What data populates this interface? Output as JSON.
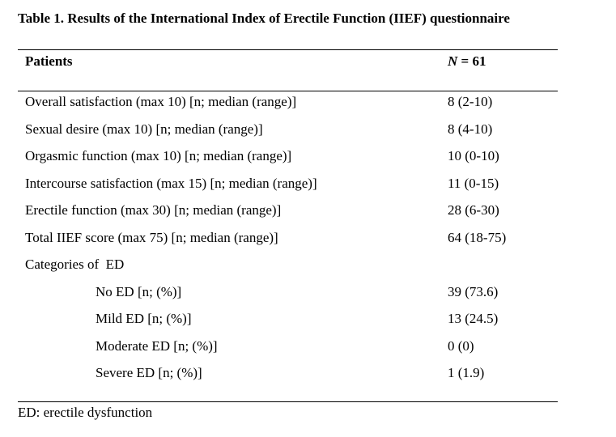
{
  "table": {
    "caption": "Table 1. Results of the International Index of Erectile Function (IIEF) questionnaire",
    "header": {
      "patients": "Patients",
      "n_symbol": "N",
      "n_rest": " = 61"
    },
    "rows": [
      {
        "label": "Overall satisfaction (max 10) [n; median (range)]",
        "value": "8 (2-10)"
      },
      {
        "label": "Sexual desire (max 10) [n; median (range)]",
        "value": "8 (4-10)"
      },
      {
        "label": "Orgasmic function (max 10) [n; median (range)]",
        "value": "10 (0-10)"
      },
      {
        "label": "Intercourse satisfaction (max 15) [n; median (range)]",
        "value": "11 (0-15)"
      },
      {
        "label": "Erectile function (max 30) [n; median (range)]",
        "value": "28 (6-30)"
      },
      {
        "label": "Total IIEF score (max 75) [n; median (range)]",
        "value": "64 (18-75)"
      },
      {
        "label": "Categories of  ED",
        "value": ""
      },
      {
        "label": "No ED [n; (%)]",
        "value": "39 (73.6)"
      },
      {
        "label": "Mild ED [n; (%)]",
        "value": "13 (24.5)"
      },
      {
        "label": "Moderate ED [n; (%)]",
        "value": "0 (0)"
      },
      {
        "label": "Severe ED [n; (%)]",
        "value": "1 (1.9)"
      }
    ],
    "footnote": "ED: erectile dysfunction"
  }
}
